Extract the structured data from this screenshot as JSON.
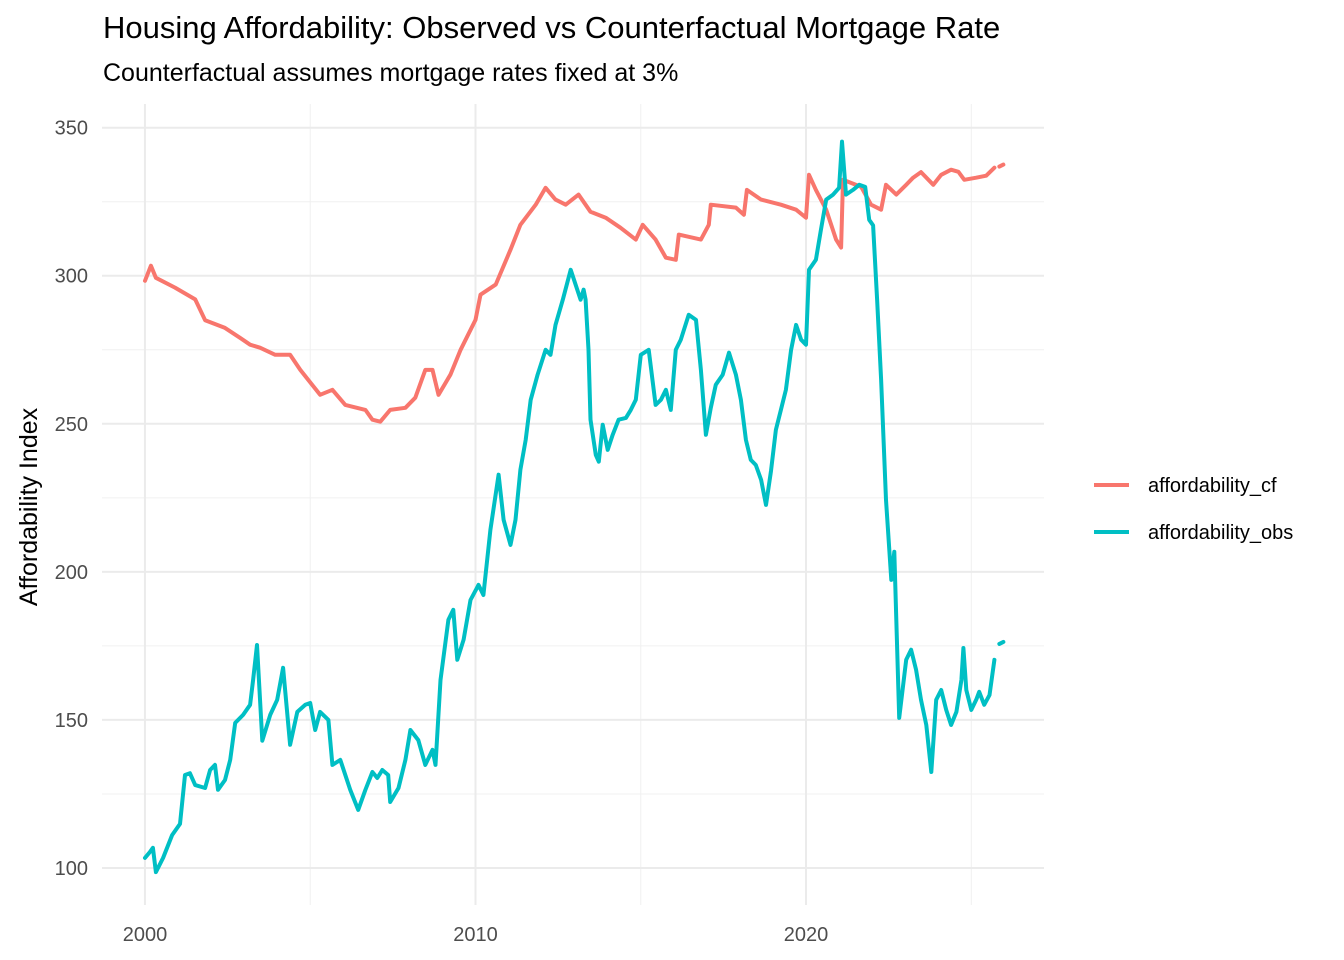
{
  "chart_data": {
    "type": "line",
    "title": "Housing Affordability: Observed vs Counterfactual Mortgage Rate",
    "subtitle": "Counterfactual assumes mortgage rates fixed at 3%",
    "xlabel": "",
    "ylabel": "Affordability Index",
    "xlim": [
      1998.7,
      2027.2
    ],
    "ylim": [
      87.5,
      358
    ],
    "x_ticks": [
      2000,
      2010,
      2020
    ],
    "x_tick_labels": [
      "2000",
      "2010",
      "2020"
    ],
    "y_ticks": [
      100,
      150,
      200,
      250,
      300,
      350
    ],
    "y_tick_labels": [
      "100",
      "150",
      "200",
      "250",
      "300",
      "350"
    ],
    "grid": true,
    "legend_position": "right",
    "series": [
      {
        "name": "affordability_cf",
        "color": "#F8766D",
        "points": [
          [
            2000.0,
            298.3
          ],
          [
            2000.18,
            303.4
          ],
          [
            2000.33,
            299.3
          ],
          [
            2000.91,
            296
          ],
          [
            2001.52,
            292
          ],
          [
            2001.82,
            285
          ],
          [
            2002.42,
            282.4
          ],
          [
            2002.88,
            279
          ],
          [
            2003.18,
            276.7
          ],
          [
            2003.48,
            275.7
          ],
          [
            2003.94,
            273.3
          ],
          [
            2004.39,
            273.3
          ],
          [
            2004.7,
            268.2
          ],
          [
            2005.3,
            259.8
          ],
          [
            2005.67,
            261.5
          ],
          [
            2006.06,
            256.4
          ],
          [
            2006.67,
            254.7
          ],
          [
            2006.88,
            251.4
          ],
          [
            2007.12,
            250.7
          ],
          [
            2007.42,
            254.7
          ],
          [
            2007.88,
            255.4
          ],
          [
            2008.18,
            258.8
          ],
          [
            2008.48,
            268.2
          ],
          [
            2008.7,
            268.2
          ],
          [
            2008.88,
            259.8
          ],
          [
            2009.24,
            266.6
          ],
          [
            2009.55,
            275
          ],
          [
            2010.0,
            285.1
          ],
          [
            2010.15,
            293.6
          ],
          [
            2010.61,
            297
          ],
          [
            2011.06,
            308.8
          ],
          [
            2011.36,
            317.2
          ],
          [
            2011.82,
            324
          ],
          [
            2012.12,
            329.7
          ],
          [
            2012.42,
            325.7
          ],
          [
            2012.73,
            324
          ],
          [
            2013.12,
            327.4
          ],
          [
            2013.48,
            321.6
          ],
          [
            2013.94,
            319.6
          ],
          [
            2014.39,
            316.2
          ],
          [
            2014.85,
            312.2
          ],
          [
            2015.06,
            317.2
          ],
          [
            2015.45,
            312.2
          ],
          [
            2015.76,
            306.1
          ],
          [
            2016.06,
            305.4
          ],
          [
            2016.15,
            313.9
          ],
          [
            2016.82,
            312.2
          ],
          [
            2017.06,
            317.2
          ],
          [
            2017.12,
            324
          ],
          [
            2017.88,
            323
          ],
          [
            2018.12,
            320.6
          ],
          [
            2018.21,
            329
          ],
          [
            2018.64,
            325.7
          ],
          [
            2019.24,
            324
          ],
          [
            2019.7,
            322.3
          ],
          [
            2020.0,
            319.6
          ],
          [
            2020.09,
            334.1
          ],
          [
            2020.3,
            329
          ],
          [
            2020.61,
            322.3
          ],
          [
            2020.91,
            312.2
          ],
          [
            2021.06,
            309.5
          ],
          [
            2021.12,
            332.4
          ],
          [
            2021.67,
            330
          ],
          [
            2021.97,
            324
          ],
          [
            2022.27,
            322.3
          ],
          [
            2022.42,
            330.7
          ],
          [
            2022.73,
            327.4
          ],
          [
            2023.03,
            330.7
          ],
          [
            2023.24,
            333.1
          ],
          [
            2023.48,
            335
          ],
          [
            2023.85,
            330.7
          ],
          [
            2024.09,
            334.1
          ],
          [
            2024.39,
            335.8
          ],
          [
            2024.61,
            335.1
          ],
          [
            2024.79,
            332.4
          ],
          [
            2025.15,
            333.1
          ],
          [
            2025.45,
            333.8
          ],
          [
            2025.7,
            336.5
          ]
        ],
        "trailing_point": [
          2025.91,
          337.2
        ]
      },
      {
        "name": "affordability_obs",
        "color": "#00BFC4",
        "points": [
          [
            2000.0,
            103.4
          ],
          [
            2000.15,
            105.4
          ],
          [
            2000.24,
            106.8
          ],
          [
            2000.33,
            98.6
          ],
          [
            2000.55,
            103.4
          ],
          [
            2000.82,
            111.1
          ],
          [
            2001.06,
            114.9
          ],
          [
            2001.21,
            131.4
          ],
          [
            2001.36,
            132
          ],
          [
            2001.52,
            128
          ],
          [
            2001.82,
            127
          ],
          [
            2001.97,
            133.1
          ],
          [
            2002.12,
            134.8
          ],
          [
            2002.21,
            126.4
          ],
          [
            2002.42,
            129.7
          ],
          [
            2002.58,
            136.5
          ],
          [
            2002.73,
            149
          ],
          [
            2002.97,
            151.7
          ],
          [
            2003.18,
            155.1
          ],
          [
            2003.27,
            163.5
          ],
          [
            2003.39,
            175.3
          ],
          [
            2003.55,
            143
          ],
          [
            2003.79,
            151.7
          ],
          [
            2004.0,
            156.8
          ],
          [
            2004.18,
            167.6
          ],
          [
            2004.39,
            141.6
          ],
          [
            2004.61,
            152.7
          ],
          [
            2004.85,
            155.1
          ],
          [
            2005.0,
            155.7
          ],
          [
            2005.15,
            146.6
          ],
          [
            2005.3,
            152.7
          ],
          [
            2005.55,
            150
          ],
          [
            2005.67,
            134.8
          ],
          [
            2005.91,
            136.5
          ],
          [
            2006.21,
            126.4
          ],
          [
            2006.45,
            119.6
          ],
          [
            2006.67,
            126.4
          ],
          [
            2006.88,
            132.4
          ],
          [
            2007.03,
            130.4
          ],
          [
            2007.18,
            133.1
          ],
          [
            2007.36,
            131.4
          ],
          [
            2007.42,
            122.3
          ],
          [
            2007.67,
            127
          ],
          [
            2007.88,
            136.5
          ],
          [
            2008.03,
            146.6
          ],
          [
            2008.27,
            143.2
          ],
          [
            2008.48,
            134.8
          ],
          [
            2008.7,
            139.9
          ],
          [
            2008.79,
            134.8
          ],
          [
            2008.94,
            163.5
          ],
          [
            2009.18,
            183.8
          ],
          [
            2009.33,
            187.2
          ],
          [
            2009.45,
            170.3
          ],
          [
            2009.64,
            177.1
          ],
          [
            2009.85,
            190.5
          ],
          [
            2010.09,
            195.6
          ],
          [
            2010.24,
            192.2
          ],
          [
            2010.45,
            214.2
          ],
          [
            2010.7,
            232.8
          ],
          [
            2010.85,
            217.6
          ],
          [
            2011.06,
            209.1
          ],
          [
            2011.21,
            217.6
          ],
          [
            2011.36,
            234.5
          ],
          [
            2011.52,
            244.6
          ],
          [
            2011.67,
            258.1
          ],
          [
            2011.88,
            266.6
          ],
          [
            2012.12,
            275
          ],
          [
            2012.27,
            273.3
          ],
          [
            2012.42,
            283.4
          ],
          [
            2012.64,
            291.9
          ],
          [
            2012.88,
            302
          ],
          [
            2013.03,
            297
          ],
          [
            2013.18,
            291.9
          ],
          [
            2013.27,
            295.3
          ],
          [
            2013.33,
            291.9
          ],
          [
            2013.42,
            275
          ],
          [
            2013.48,
            251.4
          ],
          [
            2013.64,
            239.5
          ],
          [
            2013.73,
            237.2
          ],
          [
            2013.85,
            249.7
          ],
          [
            2014.0,
            241.2
          ],
          [
            2014.15,
            246.3
          ],
          [
            2014.33,
            251.4
          ],
          [
            2014.55,
            252
          ],
          [
            2014.7,
            254.7
          ],
          [
            2014.85,
            258.1
          ],
          [
            2015.0,
            273.3
          ],
          [
            2015.24,
            275
          ],
          [
            2015.45,
            256.4
          ],
          [
            2015.61,
            258.1
          ],
          [
            2015.76,
            261.5
          ],
          [
            2015.91,
            254.7
          ],
          [
            2016.06,
            275
          ],
          [
            2016.21,
            278.4
          ],
          [
            2016.45,
            286.8
          ],
          [
            2016.67,
            285.1
          ],
          [
            2016.82,
            268.2
          ],
          [
            2016.97,
            246.3
          ],
          [
            2017.12,
            255.4
          ],
          [
            2017.27,
            263.2
          ],
          [
            2017.48,
            266.6
          ],
          [
            2017.67,
            274
          ],
          [
            2017.88,
            266.6
          ],
          [
            2018.03,
            258.1
          ],
          [
            2018.18,
            244.6
          ],
          [
            2018.33,
            237.8
          ],
          [
            2018.48,
            236.1
          ],
          [
            2018.64,
            231.1
          ],
          [
            2018.79,
            222.6
          ],
          [
            2018.94,
            234.1
          ],
          [
            2019.09,
            248
          ],
          [
            2019.24,
            254.7
          ],
          [
            2019.39,
            261.5
          ],
          [
            2019.55,
            275
          ],
          [
            2019.7,
            283.4
          ],
          [
            2019.85,
            278.4
          ],
          [
            2020.0,
            276.7
          ],
          [
            2020.09,
            302
          ],
          [
            2020.3,
            305.4
          ],
          [
            2020.45,
            315.5
          ],
          [
            2020.61,
            325.7
          ],
          [
            2020.82,
            327.4
          ],
          [
            2021.0,
            329.7
          ],
          [
            2021.09,
            345.3
          ],
          [
            2021.21,
            327.4
          ],
          [
            2021.42,
            329
          ],
          [
            2021.61,
            330.7
          ],
          [
            2021.79,
            330
          ],
          [
            2021.91,
            318.9
          ],
          [
            2022.03,
            317
          ],
          [
            2022.15,
            292
          ],
          [
            2022.27,
            265
          ],
          [
            2022.42,
            224.3
          ],
          [
            2022.58,
            197.3
          ],
          [
            2022.67,
            206.8
          ],
          [
            2022.82,
            150.7
          ],
          [
            2023.03,
            170.3
          ],
          [
            2023.18,
            173.7
          ],
          [
            2023.33,
            166.9
          ],
          [
            2023.48,
            156.8
          ],
          [
            2023.64,
            148.3
          ],
          [
            2023.79,
            132.4
          ],
          [
            2023.94,
            156.8
          ],
          [
            2024.09,
            160.1
          ],
          [
            2024.24,
            153.4
          ],
          [
            2024.39,
            148.3
          ],
          [
            2024.55,
            152.7
          ],
          [
            2024.7,
            163.5
          ],
          [
            2024.76,
            174.3
          ],
          [
            2024.85,
            160.1
          ],
          [
            2025.0,
            153.4
          ],
          [
            2025.15,
            156.8
          ],
          [
            2025.24,
            159.5
          ],
          [
            2025.39,
            155.1
          ],
          [
            2025.55,
            158.4
          ],
          [
            2025.7,
            170.3
          ]
        ],
        "trailing_point": [
          2025.91,
          176
        ]
      }
    ]
  }
}
